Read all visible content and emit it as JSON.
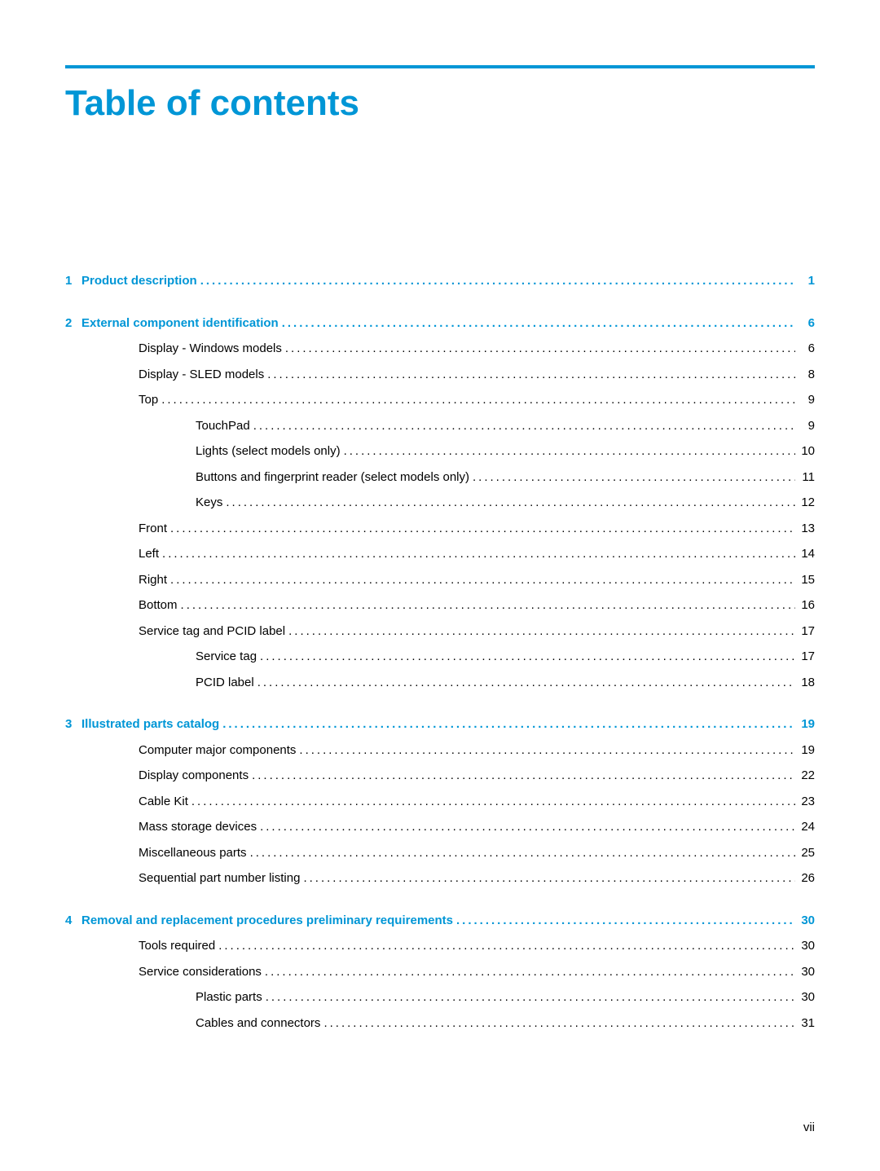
{
  "title": "Table of contents",
  "colors": {
    "accent": "#0096d6",
    "text": "#000000",
    "background": "#ffffff"
  },
  "typography": {
    "title_fontsize": 44,
    "body_fontsize": 15,
    "font_family": "Arial"
  },
  "page_number": "vii",
  "sections": [
    {
      "number": "1",
      "title": "Product description",
      "page": "1",
      "children": []
    },
    {
      "number": "2",
      "title": "External component identification",
      "page": "6",
      "children": [
        {
          "level": 1,
          "title": "Display - Windows models",
          "page": "6"
        },
        {
          "level": 1,
          "title": "Display - SLED models",
          "page": "8"
        },
        {
          "level": 1,
          "title": "Top",
          "page": "9"
        },
        {
          "level": 2,
          "title": "TouchPad",
          "page": "9"
        },
        {
          "level": 2,
          "title": "Lights (select models only)",
          "page": "10"
        },
        {
          "level": 2,
          "title": "Buttons and fingerprint reader (select models only)",
          "page": "11"
        },
        {
          "level": 2,
          "title": "Keys",
          "page": "12"
        },
        {
          "level": 1,
          "title": "Front",
          "page": "13"
        },
        {
          "level": 1,
          "title": "Left",
          "page": "14"
        },
        {
          "level": 1,
          "title": "Right",
          "page": "15"
        },
        {
          "level": 1,
          "title": "Bottom",
          "page": "16"
        },
        {
          "level": 1,
          "title": "Service tag and PCID label",
          "page": "17"
        },
        {
          "level": 2,
          "title": "Service tag",
          "page": "17"
        },
        {
          "level": 2,
          "title": "PCID label",
          "page": "18"
        }
      ]
    },
    {
      "number": "3",
      "title": "Illustrated parts catalog",
      "page": "19",
      "children": [
        {
          "level": 1,
          "title": "Computer major components",
          "page": "19"
        },
        {
          "level": 1,
          "title": "Display components",
          "page": "22"
        },
        {
          "level": 1,
          "title": "Cable Kit",
          "page": "23"
        },
        {
          "level": 1,
          "title": "Mass storage devices",
          "page": "24"
        },
        {
          "level": 1,
          "title": "Miscellaneous parts",
          "page": "25"
        },
        {
          "level": 1,
          "title": "Sequential part number listing",
          "page": "26"
        }
      ]
    },
    {
      "number": "4",
      "title": "Removal and replacement procedures preliminary requirements",
      "page": "30",
      "children": [
        {
          "level": 1,
          "title": "Tools required",
          "page": "30"
        },
        {
          "level": 1,
          "title": "Service considerations",
          "page": "30"
        },
        {
          "level": 2,
          "title": "Plastic parts",
          "page": "30"
        },
        {
          "level": 2,
          "title": "Cables and connectors",
          "page": "31"
        }
      ]
    }
  ]
}
